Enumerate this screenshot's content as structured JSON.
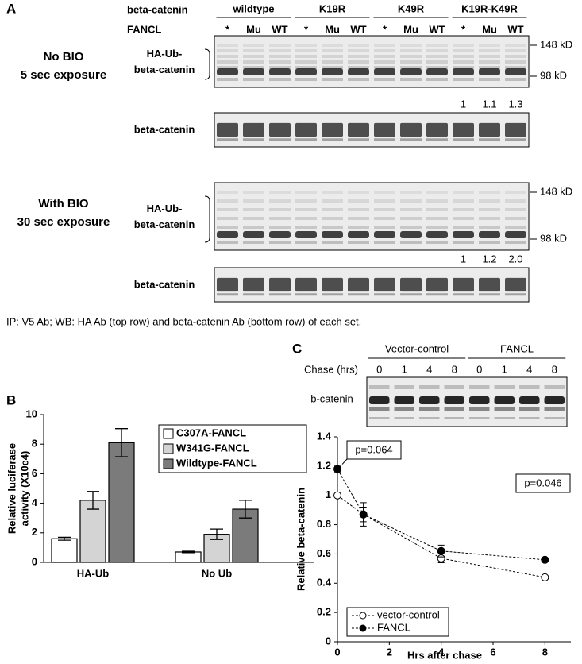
{
  "panel_a": {
    "label": "A",
    "row_headers": [
      "beta-catenin",
      "FANCL"
    ],
    "groups": [
      {
        "name": "wildtype",
        "lanes": [
          "*",
          "Mu",
          "WT"
        ]
      },
      {
        "name": "K19R",
        "lanes": [
          "*",
          "Mu",
          "WT"
        ]
      },
      {
        "name": "K49R",
        "lanes": [
          "*",
          "Mu",
          "WT"
        ]
      },
      {
        "name": "K19R-K49R",
        "lanes": [
          "*",
          "Mu",
          "WT"
        ]
      }
    ],
    "sets": [
      {
        "condition": [
          "No BIO",
          "5 sec exposure"
        ],
        "blot_label": [
          "HA-Ub-",
          "beta-catenin"
        ],
        "markers": [
          "148 kD",
          "98 kD"
        ],
        "quantification": [
          "1",
          "1.1",
          "1.3"
        ],
        "loading_label": "beta-catenin"
      },
      {
        "condition": [
          "With BIO",
          "30 sec exposure"
        ],
        "blot_label": [
          "HA-Ub-",
          "beta-catenin"
        ],
        "markers": [
          "148 kD",
          "98 kD"
        ],
        "quantification": [
          "1",
          "1.2",
          "2.0"
        ],
        "loading_label": "beta-catenin"
      }
    ],
    "footnote": "IP: V5 Ab; WB: HA Ab (top row) and beta-catenin Ab (bottom row) of each set."
  },
  "panel_c_blot": {
    "label": "C",
    "row_header": "Chase (hrs)",
    "groups": [
      {
        "name": "Vector-control",
        "lanes": [
          "0",
          "1",
          "4",
          "8"
        ]
      },
      {
        "name": "FANCL",
        "lanes": [
          "0",
          "1",
          "4",
          "8"
        ]
      }
    ],
    "blot_label": "b-catenin"
  },
  "chart_data": [
    {
      "type": "bar",
      "label": "B",
      "ylabel": [
        "Relative luciferase",
        "activity (X10e4)"
      ],
      "categories": [
        "HA-Ub",
        "No Ub"
      ],
      "series": [
        {
          "name": "C307A-FANCL",
          "color": "#ffffff",
          "values": [
            1.6,
            0.7
          ],
          "errors": [
            0.1,
            0.05
          ]
        },
        {
          "name": "W341G-FANCL",
          "color": "#d4d4d4",
          "values": [
            4.2,
            1.9
          ],
          "errors": [
            0.6,
            0.35
          ]
        },
        {
          "name": "Wildtype-FANCL",
          "color": "#7b7b7b",
          "values": [
            8.1,
            3.6
          ],
          "errors": [
            0.95,
            0.6
          ]
        }
      ],
      "ylim": [
        0,
        10
      ],
      "yticks": [
        0,
        2,
        4,
        6,
        8,
        10
      ],
      "legend": "upper right"
    },
    {
      "type": "line",
      "xlabel": "Hrs after chase",
      "ylabel": "Relative beta-catenin",
      "x": [
        0,
        1,
        4,
        8
      ],
      "series": [
        {
          "name": "vector-control",
          "color": "#000000",
          "marker": "open",
          "values": [
            1,
            0.87,
            0.57,
            0.44
          ],
          "errors": [
            0,
            0.05,
            0.03,
            0
          ]
        },
        {
          "name": "FANCL",
          "color": "#000000",
          "marker": "filled",
          "values": [
            1.18,
            0.87,
            0.62,
            0.56
          ],
          "errors": [
            0.02,
            0.08,
            0.04,
            0
          ]
        }
      ],
      "xlim": [
        0,
        9
      ],
      "xticks": [
        0,
        2,
        4,
        6,
        8
      ],
      "ylim": [
        0,
        1.4
      ],
      "yticks": [
        0,
        0.2,
        0.4,
        0.6,
        0.8,
        1,
        1.2,
        1.4
      ],
      "annotations": [
        "p=0.064",
        "p=0.046"
      ],
      "legend": "lower left"
    }
  ]
}
